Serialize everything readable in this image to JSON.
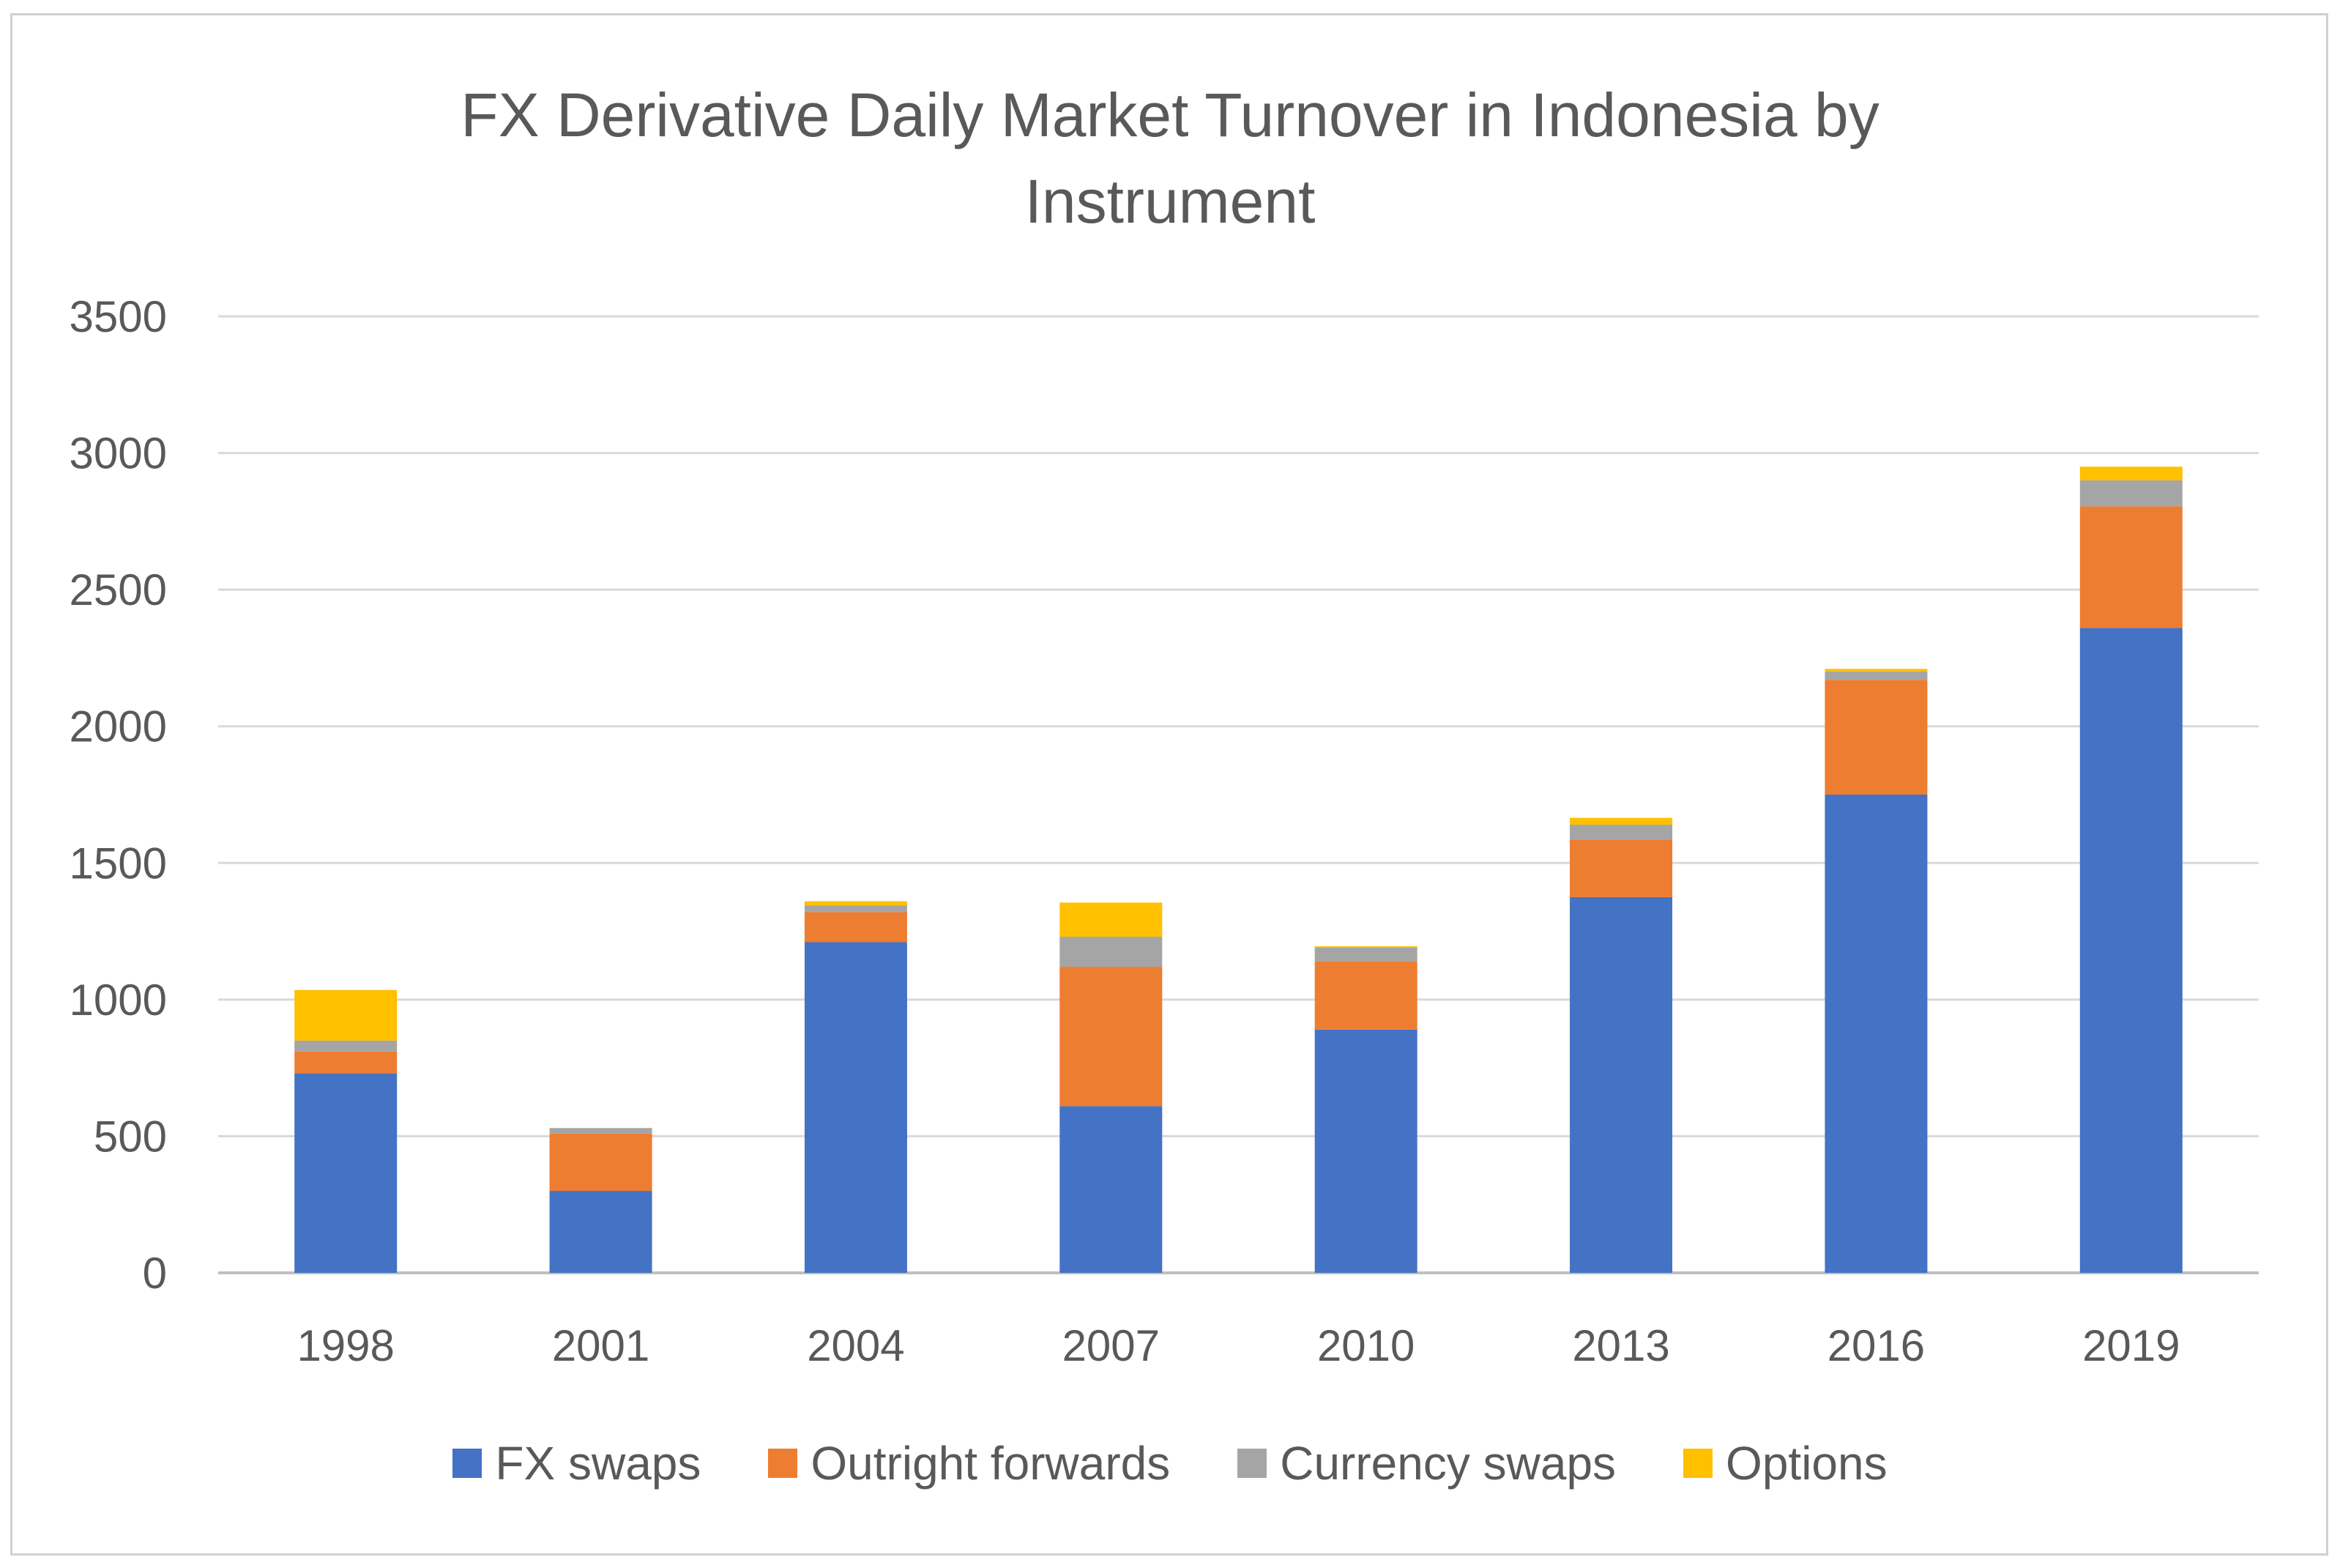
{
  "chart_data": {
    "type": "bar",
    "stacked": true,
    "title_lines": [
      "FX Derivative Daily Market Turnover in Indonesia by",
      "Instrument"
    ],
    "categories": [
      "1998",
      "2001",
      "2004",
      "2007",
      "2010",
      "2013",
      "2016",
      "2019"
    ],
    "ylim": [
      0,
      3500
    ],
    "yticks": [
      0,
      500,
      1000,
      1500,
      2000,
      2500,
      3000,
      3500
    ],
    "grid": true,
    "legend_position": "bottom",
    "series": [
      {
        "name": "FX swaps",
        "color": "#4472C4",
        "values": [
          730,
          300,
          1210,
          610,
          890,
          1375,
          1750,
          2360
        ]
      },
      {
        "name": "Outright forwards",
        "color": "#ED7D31",
        "values": [
          80,
          210,
          110,
          510,
          250,
          210,
          420,
          445
        ]
      },
      {
        "name": "Currency swaps",
        "color": "#A5A5A5",
        "values": [
          40,
          20,
          25,
          110,
          50,
          55,
          30,
          95
        ]
      },
      {
        "name": "Options",
        "color": "#FFC000",
        "values": [
          185,
          0,
          15,
          125,
          5,
          25,
          10,
          50
        ]
      }
    ]
  }
}
